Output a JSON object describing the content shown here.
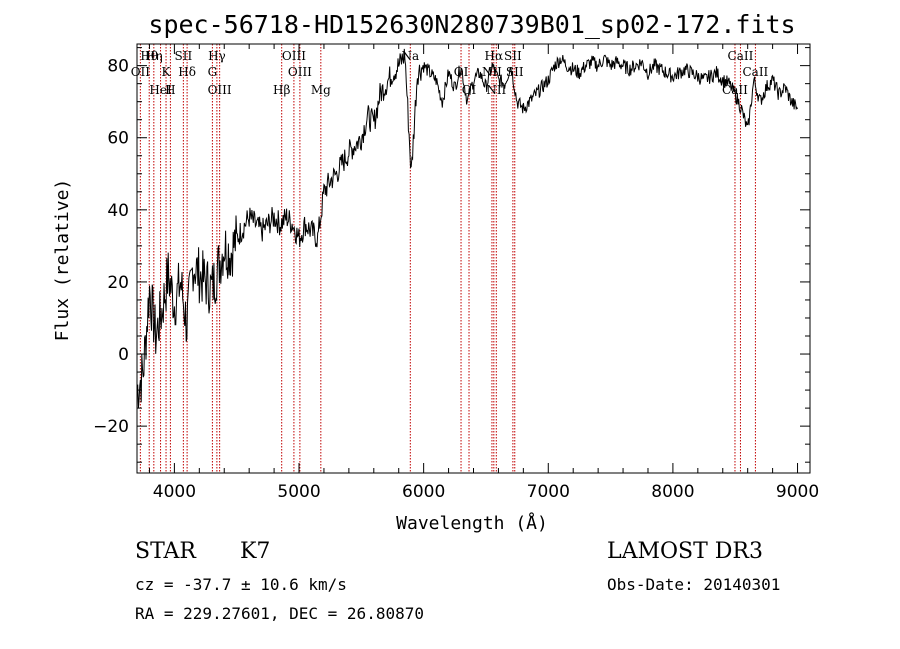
{
  "chart_data": {
    "type": "line",
    "title": "spec-56718-HD152630N280739B01_sp02-172.fits",
    "xlabel": "Wavelength (Å)",
    "ylabel": "Flux (relative)",
    "xlim": [
      3700,
      9100
    ],
    "ylim": [
      -33,
      86
    ],
    "xticks": [
      4000,
      5000,
      6000,
      7000,
      8000,
      9000
    ],
    "yticks": [
      -20,
      0,
      20,
      40,
      60,
      80
    ],
    "series": [
      {
        "name": "flux",
        "x": [
          3700,
          3750,
          3800,
          3850,
          3900,
          3950,
          4000,
          4050,
          4100,
          4150,
          4200,
          4250,
          4300,
          4350,
          4400,
          4450,
          4500,
          4550,
          4600,
          4650,
          4700,
          4750,
          4800,
          4850,
          4900,
          4950,
          5000,
          5050,
          5100,
          5150,
          5200,
          5250,
          5300,
          5350,
          5400,
          5450,
          5500,
          5550,
          5600,
          5650,
          5700,
          5750,
          5800,
          5850,
          5900,
          5950,
          6000,
          6050,
          6100,
          6150,
          6200,
          6250,
          6300,
          6350,
          6400,
          6450,
          6500,
          6550,
          6600,
          6650,
          6700,
          6750,
          6800,
          6850,
          6900,
          6950,
          7000,
          7050,
          7100,
          7150,
          7200,
          7250,
          7300,
          7350,
          7400,
          7450,
          7500,
          7550,
          7600,
          7650,
          7700,
          7750,
          7800,
          7850,
          7900,
          7950,
          8000,
          8050,
          8100,
          8150,
          8200,
          8250,
          8300,
          8350,
          8400,
          8450,
          8500,
          8550,
          8600,
          8650,
          8700,
          8750,
          8800,
          8850,
          8900,
          8950,
          9000
        ],
        "values": [
          -10,
          -5,
          18,
          5,
          12,
          22,
          14,
          20,
          8,
          25,
          22,
          20,
          18,
          24,
          30,
          28,
          32,
          35,
          38,
          36,
          34,
          36,
          38,
          36,
          38,
          36,
          32,
          36,
          34,
          32,
          45,
          48,
          50,
          53,
          56,
          58,
          60,
          66,
          64,
          72,
          75,
          78,
          80,
          83,
          50,
          78,
          80,
          78,
          76,
          70,
          78,
          74,
          80,
          70,
          76,
          78,
          74,
          80,
          76,
          75,
          80,
          70,
          68,
          70,
          72,
          74,
          76,
          80,
          82,
          80,
          79,
          78,
          80,
          81,
          80,
          82,
          80,
          81,
          80,
          79,
          80,
          81,
          78,
          80,
          79,
          78,
          77,
          78,
          79,
          78,
          77,
          76,
          77,
          78,
          76,
          75,
          72,
          68,
          62,
          76,
          70,
          74,
          76,
          72,
          74,
          70,
          68
        ]
      }
    ],
    "emission_lines": [
      {
        "label": "Hθ",
        "x": 3798
      },
      {
        "label": "OII",
        "x": 3727
      },
      {
        "label": "HeI",
        "x": 3889
      },
      {
        "label": "Hη",
        "x": 3835
      },
      {
        "label": "K",
        "x": 3933
      },
      {
        "label": "H",
        "x": 3968
      },
      {
        "label": "SII",
        "x": 4072
      },
      {
        "label": "Hδ",
        "x": 4102
      },
      {
        "label": "OIII",
        "x": 4363
      },
      {
        "label": "Hγ",
        "x": 4341
      },
      {
        "label": "G",
        "x": 4305
      },
      {
        "label": "Hβ",
        "x": 4861
      },
      {
        "label": "OIII",
        "x": 4959
      },
      {
        "label": "OIII",
        "x": 5007
      },
      {
        "label": "Mg",
        "x": 5175
      },
      {
        "label": "Na",
        "x": 5893
      },
      {
        "label": "OI",
        "x": 6300
      },
      {
        "label": "OI",
        "x": 6364
      },
      {
        "label": "Hα",
        "x": 6563
      },
      {
        "label": "NII",
        "x": 6548
      },
      {
        "label": "NII",
        "x": 6583
      },
      {
        "label": "SII",
        "x": 6716
      },
      {
        "label": "SII",
        "x": 6731
      },
      {
        "label": "CaII",
        "x": 8498
      },
      {
        "label": "CaII",
        "x": 8542
      },
      {
        "label": "CaII",
        "x": 8662
      }
    ]
  },
  "info": {
    "object_type": "STAR",
    "subclass": "K7",
    "survey": "LAMOST DR3",
    "cz": "cz = -37.7 ± 10.6 km/s",
    "obs_date": "Obs-Date: 20140301",
    "coords": "RA = 229.27601, DEC =  26.80870"
  }
}
